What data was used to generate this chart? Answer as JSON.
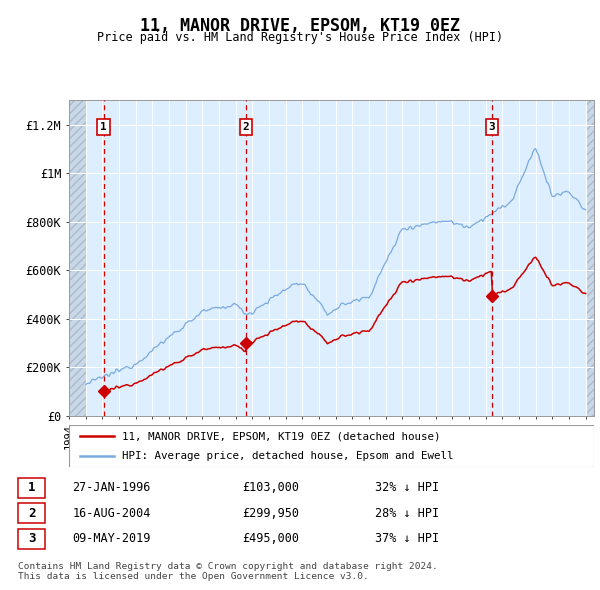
{
  "title": "11, MANOR DRIVE, EPSOM, KT19 0EZ",
  "subtitle": "Price paid vs. HM Land Registry's House Price Index (HPI)",
  "xlim": [
    1994.0,
    2025.5
  ],
  "ylim": [
    0,
    1300000
  ],
  "yticks": [
    0,
    200000,
    400000,
    600000,
    800000,
    1000000,
    1200000
  ],
  "ytick_labels": [
    "£0",
    "£200K",
    "£400K",
    "£600K",
    "£800K",
    "£1M",
    "£1.2M"
  ],
  "hpi_color": "#7aaadd",
  "price_color": "#cc0000",
  "vline_color": "#cc0000",
  "bg_color": "#ddeeff",
  "hatch_color": "#c8d8e8",
  "purchases": [
    {
      "label": "1",
      "date_num": 1996.07,
      "price": 103000
    },
    {
      "label": "2",
      "date_num": 2004.62,
      "price": 299950
    },
    {
      "label": "3",
      "date_num": 2019.36,
      "price": 495000
    }
  ],
  "purchase_info": [
    {
      "num": "1",
      "date": "27-JAN-1996",
      "price": "£103,000",
      "pct": "32% ↓ HPI"
    },
    {
      "num": "2",
      "date": "16-AUG-2004",
      "price": "£299,950",
      "pct": "28% ↓ HPI"
    },
    {
      "num": "3",
      "date": "09-MAY-2019",
      "price": "£495,000",
      "pct": "37% ↓ HPI"
    }
  ],
  "legend_line1": "11, MANOR DRIVE, EPSOM, KT19 0EZ (detached house)",
  "legend_line2": "HPI: Average price, detached house, Epsom and Ewell",
  "footnote": "Contains HM Land Registry data © Crown copyright and database right 2024.\nThis data is licensed under the Open Government Licence v3.0.",
  "hatch_left_start": 1994.0,
  "hatch_left_end": 1995.0,
  "hatch_right_start": 2025.0,
  "hatch_right_end": 2025.5
}
